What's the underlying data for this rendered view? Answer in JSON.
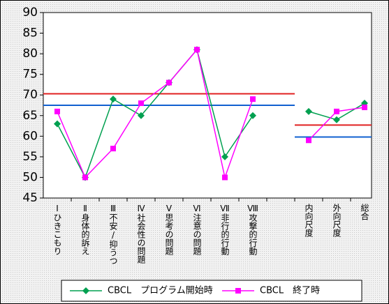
{
  "chart_data": {
    "type": "line",
    "categories": [
      "Ⅰひきこもり",
      "Ⅱ身体的訴え",
      "Ⅲ不安/抑うつ",
      "Ⅳ社会性の問題",
      "Ⅴ思考の問題",
      "Ⅵ注意の問題",
      "Ⅶ非行的行動",
      "Ⅷ攻撃的行動",
      null,
      "内向尺度",
      "外向尺度",
      "総合"
    ],
    "series": [
      {
        "name": "CBCL　プログラム開始時",
        "color": "#00a050",
        "marker": "diamond",
        "values": [
          63,
          50,
          69,
          65,
          73,
          81,
          55,
          65,
          null,
          66,
          64,
          68
        ]
      },
      {
        "name": "CBCL　終了時",
        "color": "#ff00ff",
        "marker": "square",
        "values": [
          66,
          50,
          57,
          68,
          73,
          81,
          50,
          69,
          null,
          59,
          66,
          67
        ]
      }
    ],
    "reference_lines": [
      {
        "color": "#e02020",
        "values": [
          70.3,
          70.3,
          70.3,
          70.3,
          70.3,
          70.3,
          70.3,
          70.3,
          70.3,
          62.7,
          62.7,
          62.7
        ]
      },
      {
        "color": "#1060d0",
        "values": [
          67.5,
          67.5,
          67.5,
          67.5,
          67.5,
          67.5,
          67.5,
          67.5,
          67.5,
          59.8,
          59.8,
          59.8
        ]
      }
    ],
    "ylim": [
      45,
      90
    ],
    "yticks": [
      45,
      50,
      55,
      60,
      65,
      70,
      75,
      80,
      85,
      90
    ],
    "legend": "bottom"
  }
}
